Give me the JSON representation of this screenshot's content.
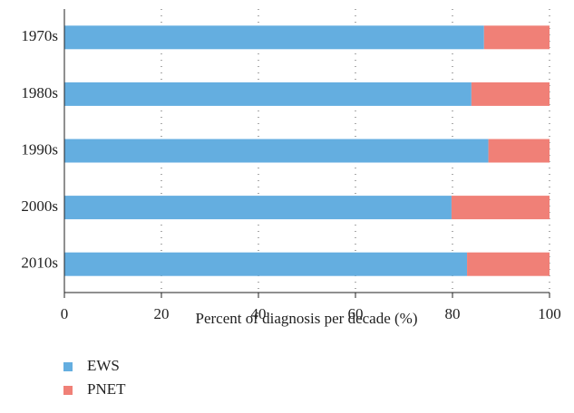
{
  "chart_data": {
    "type": "bar",
    "orientation": "horizontal",
    "stacked": true,
    "x_label": "Percent of diagnosis per decade (%)",
    "categories": [
      "1970s",
      "1980s",
      "1990s",
      "2000s",
      "2010s"
    ],
    "series": [
      {
        "name": "EWS",
        "color": "#64aee0",
        "values": [
          86.5,
          83.9,
          87.4,
          79.8,
          83.0
        ]
      },
      {
        "name": "PNET",
        "color": "#f08077",
        "values": [
          13.5,
          16.1,
          12.6,
          20.2,
          17.0
        ]
      }
    ],
    "xlim": [
      0,
      100
    ],
    "xticks": [
      0,
      20,
      40,
      60,
      80,
      100
    ],
    "grid": true,
    "legend": "bottom-left"
  }
}
